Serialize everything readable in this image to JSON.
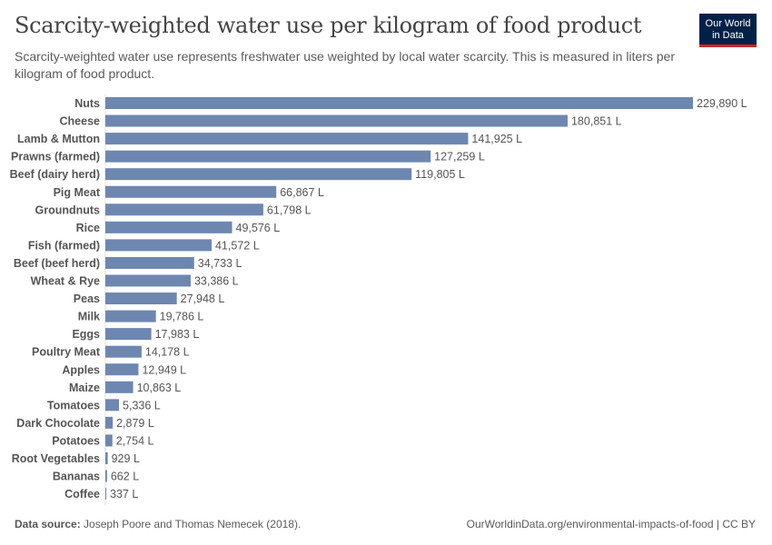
{
  "header": {
    "title": "Scarcity-weighted water use per kilogram of food product",
    "subtitle": "Scarcity-weighted water use represents freshwater use weighted by local water scarcity. This is measured in liters per kilogram of food product.",
    "logo_line1": "Our World",
    "logo_line2": "in Data"
  },
  "footer": {
    "source_label": "Data source:",
    "source": "Joseph Poore and Thomas Nemecek (2018).",
    "url": "OurWorldinData.org/environmental-impacts-of-food | CC BY"
  },
  "chart_data": {
    "type": "bar",
    "orientation": "horizontal",
    "unit": "L",
    "bar_color": "#6d87b0",
    "categories": [
      "Nuts",
      "Cheese",
      "Lamb & Mutton",
      "Prawns (farmed)",
      "Beef (dairy herd)",
      "Pig Meat",
      "Groundnuts",
      "Rice",
      "Fish (farmed)",
      "Beef (beef herd)",
      "Wheat & Rye",
      "Peas",
      "Milk",
      "Eggs",
      "Poultry Meat",
      "Apples",
      "Maize",
      "Tomatoes",
      "Dark Chocolate",
      "Potatoes",
      "Root Vegetables",
      "Bananas",
      "Coffee"
    ],
    "values": [
      229890,
      180851,
      141925,
      127259,
      119805,
      66867,
      61798,
      49576,
      41572,
      34733,
      33386,
      27948,
      19786,
      17983,
      14178,
      12949,
      10863,
      5336,
      2879,
      2754,
      929,
      662,
      337
    ],
    "labels": [
      "229,890 L",
      "180,851 L",
      "141,925 L",
      "127,259 L",
      "119,805 L",
      "66,867 L",
      "61,798 L",
      "49,576 L",
      "41,572 L",
      "34,733 L",
      "33,386 L",
      "27,948 L",
      "19,786 L",
      "17,983 L",
      "14,178 L",
      "12,949 L",
      "10,863 L",
      "5,336 L",
      "2,879 L",
      "2,754 L",
      "929 L",
      "662 L",
      "337 L"
    ],
    "xlim": [
      0,
      229890
    ]
  }
}
